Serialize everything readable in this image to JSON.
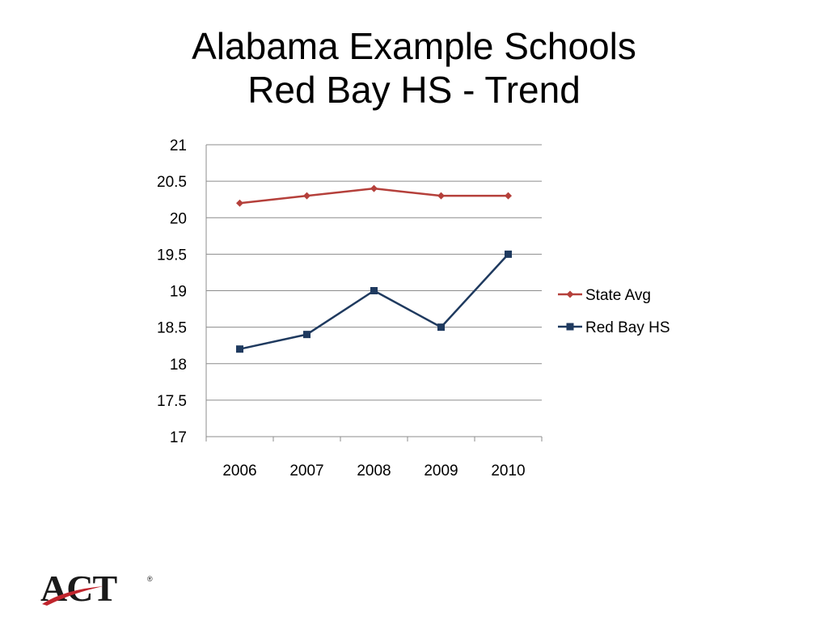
{
  "slide": {
    "title_line1": "Alabama Example Schools",
    "title_line2": "Red Bay HS - Trend"
  },
  "logo": {
    "text": "ACT",
    "mark": "®",
    "swoosh_color": "#c0252d"
  },
  "chart_data": {
    "type": "line",
    "title": "",
    "xlabel": "",
    "ylabel": "",
    "categories": [
      "2006",
      "2007",
      "2008",
      "2009",
      "2010"
    ],
    "ylim": [
      17,
      21
    ],
    "yticks": [
      "21",
      "20.5",
      "20",
      "19.5",
      "19",
      "18.5",
      "18",
      "17.5",
      "17"
    ],
    "grid": true,
    "legend_position": "right",
    "series": [
      {
        "name": "State Avg",
        "values": [
          20.2,
          20.3,
          20.4,
          20.3,
          20.3
        ],
        "color": "#b5403b",
        "marker": "diamond"
      },
      {
        "name": "Red Bay HS",
        "values": [
          18.2,
          18.4,
          19.0,
          18.5,
          19.5
        ],
        "color": "#1f3a5f",
        "marker": "square"
      }
    ]
  }
}
